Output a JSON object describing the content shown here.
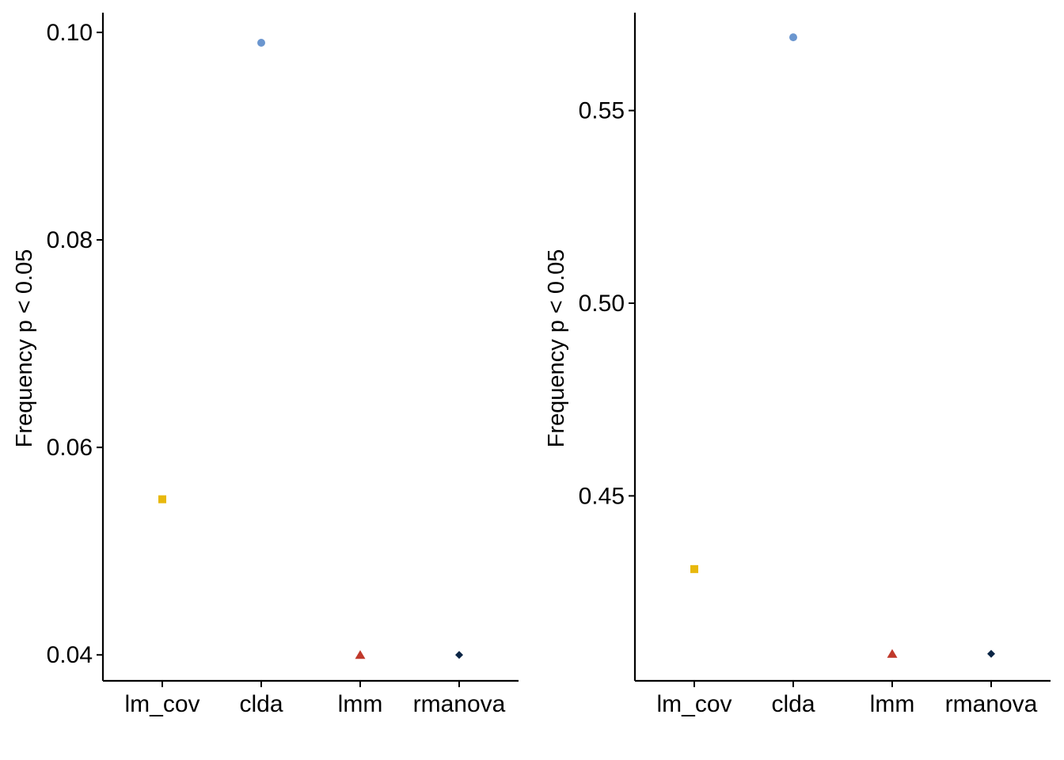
{
  "chart_data": [
    {
      "type": "scatter",
      "title": "",
      "xlabel": "",
      "ylabel": "Frequency p < 0.05",
      "categories": [
        "lm_cov",
        "clda",
        "lmm",
        "rmanova"
      ],
      "values": [
        0.055,
        0.099,
        0.04,
        0.04
      ],
      "yticks": [
        "0.04",
        "0.06",
        "0.08",
        "0.10"
      ],
      "ylim": [
        0.0375,
        0.1019
      ],
      "grid": false,
      "legend": "none",
      "point_shapes": [
        "square",
        "circle",
        "triangle",
        "diamond"
      ],
      "point_colors": [
        "#E8B80C",
        "#6B96CF",
        "#C0392B",
        "#0B2545"
      ]
    },
    {
      "type": "scatter",
      "title": "",
      "xlabel": "",
      "ylabel": "Frequency p < 0.05",
      "categories": [
        "lm_cov",
        "clda",
        "lmm",
        "rmanova"
      ],
      "values": [
        0.431,
        0.569,
        0.409,
        0.409
      ],
      "yticks": [
        "0.45",
        "0.50",
        "0.55"
      ],
      "ylim": [
        0.402,
        0.5754
      ],
      "grid": false,
      "legend": "none",
      "point_shapes": [
        "square",
        "circle",
        "triangle",
        "diamond"
      ],
      "point_colors": [
        "#E8B80C",
        "#6B96CF",
        "#C0392B",
        "#0B2545"
      ]
    }
  ]
}
